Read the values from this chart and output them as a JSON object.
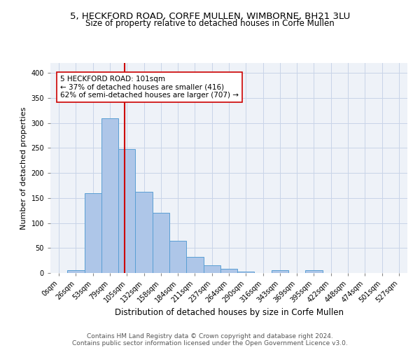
{
  "title1": "5, HECKFORD ROAD, CORFE MULLEN, WIMBORNE, BH21 3LU",
  "title2": "Size of property relative to detached houses in Corfe Mullen",
  "xlabel": "Distribution of detached houses by size in Corfe Mullen",
  "ylabel": "Number of detached properties",
  "bar_labels": [
    "0sqm",
    "26sqm",
    "53sqm",
    "79sqm",
    "105sqm",
    "132sqm",
    "158sqm",
    "184sqm",
    "211sqm",
    "237sqm",
    "264sqm",
    "290sqm",
    "316sqm",
    "343sqm",
    "369sqm",
    "395sqm",
    "422sqm",
    "448sqm",
    "474sqm",
    "501sqm",
    "527sqm"
  ],
  "bar_heights": [
    0,
    5,
    160,
    310,
    248,
    163,
    120,
    65,
    32,
    15,
    8,
    3,
    0,
    5,
    0,
    5,
    0,
    0,
    0,
    0,
    0
  ],
  "bar_color": "#aec6e8",
  "bar_edge_color": "#5a9fd4",
  "vline_color": "#cc0000",
  "annotation_text": "5 HECKFORD ROAD: 101sqm\n← 37% of detached houses are smaller (416)\n62% of semi-detached houses are larger (707) →",
  "annotation_box_color": "white",
  "annotation_box_edge_color": "#cc0000",
  "ylim": [
    0,
    420
  ],
  "yticks": [
    0,
    50,
    100,
    150,
    200,
    250,
    300,
    350,
    400
  ],
  "grid_color": "#c8d4e8",
  "background_color": "#eef2f8",
  "footer1": "Contains HM Land Registry data © Crown copyright and database right 2024.",
  "footer2": "Contains public sector information licensed under the Open Government Licence v3.0.",
  "title1_fontsize": 9.5,
  "title2_fontsize": 8.5,
  "xlabel_fontsize": 8.5,
  "ylabel_fontsize": 8,
  "tick_fontsize": 7,
  "annotation_fontsize": 7.5,
  "footer_fontsize": 6.5
}
